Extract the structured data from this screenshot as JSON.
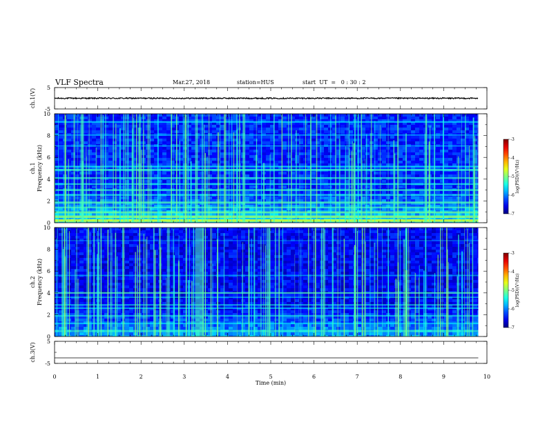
{
  "header": {
    "title": "VLF Spectra",
    "date": "Mar.27, 2018",
    "station": "station=HUS",
    "start": "start  UT  =   0 : 30 : 2"
  },
  "chart_data": [
    {
      "type": "line",
      "title": "",
      "ylabel": "ch.1(V)",
      "ylim": [
        -5,
        5
      ],
      "y_ticks": [
        "5",
        "-5"
      ],
      "xlim": [
        0,
        10
      ],
      "series": [
        {
          "values_mean": 0,
          "values_amplitude": 0.3,
          "x_range": [
            0,
            9.8
          ]
        }
      ]
    },
    {
      "type": "heatmap",
      "ylabel": "ch.1\nFrequency  (kHz)",
      "ylabel_line1": "ch.1",
      "ylabel_line2": "Frequency  (kHz)",
      "ylim": [
        0,
        10
      ],
      "y_ticks": [
        "0",
        "2",
        "4",
        "6",
        "8",
        "10"
      ],
      "xlim": [
        0,
        10
      ],
      "data_x_range": [
        0,
        9.8
      ],
      "colorbar": {
        "label": "log(PSD)(V²/Hz)",
        "range": [
          -7,
          -3
        ],
        "ticks": [
          "-3",
          "-4",
          "-5",
          "-6",
          "-7"
        ]
      }
    },
    {
      "type": "heatmap",
      "ylabel": "ch.2\nFrequency  (kHz)",
      "ylabel_line1": "ch.2",
      "ylabel_line2": "Frequency  (kHz)",
      "ylim": [
        0,
        10
      ],
      "y_ticks": [
        "0",
        "2",
        "4",
        "6",
        "8",
        "10"
      ],
      "xlim": [
        0,
        10
      ],
      "data_x_range": [
        0,
        9.8
      ],
      "colorbar": {
        "label": "log(PSD)(V²/Hz)",
        "range": [
          -7,
          -3
        ],
        "ticks": [
          "-3",
          "-4",
          "-5",
          "-6",
          "-7"
        ]
      }
    },
    {
      "type": "line",
      "ylabel": "ch.3(V)",
      "ylim": [
        -5,
        5
      ],
      "y_ticks": [
        "5",
        "-5"
      ],
      "xlim": [
        0,
        10
      ],
      "series": [
        {
          "values_mean": -2.5,
          "x_range": [
            0,
            9.8
          ]
        }
      ]
    }
  ],
  "x_axis": {
    "label": "Time  (min)",
    "ticks": [
      "0",
      "1",
      "2",
      "3",
      "4",
      "5",
      "6",
      "7",
      "8",
      "9",
      "10"
    ]
  }
}
